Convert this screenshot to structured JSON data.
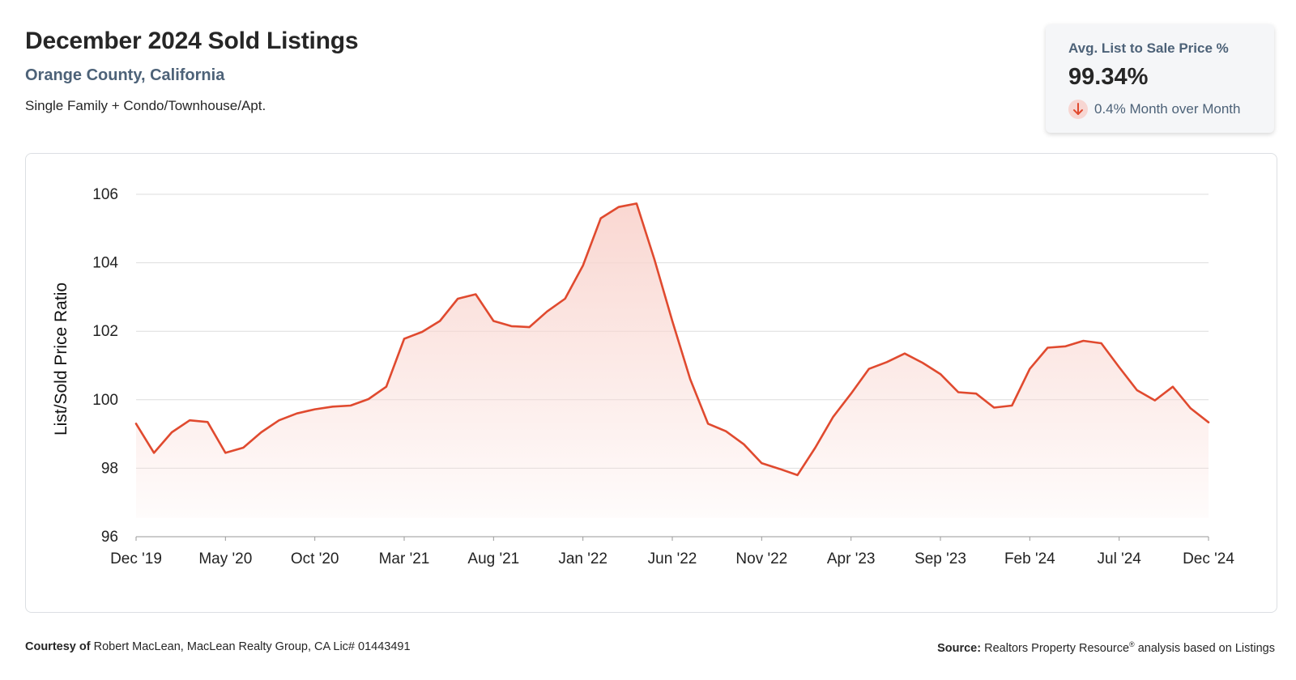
{
  "header": {
    "title": "December 2024 Sold Listings",
    "subtitle": "Orange County, California",
    "property_type": "Single Family + Condo/Townhouse/Apt."
  },
  "kpi": {
    "label": "Avg. List to Sale Price %",
    "value": "99.34%",
    "change": "0.4% Month over Month",
    "direction_icon": "arrow-down-icon",
    "direction_color": "#e04a2f"
  },
  "footer": {
    "courtesy_label": "Courtesy of",
    "courtesy_text": "Robert MacLean, MacLean Realty Group, CA Lic# 01443491",
    "source_label": "Source:",
    "source_text_1": "Realtors Property Resource",
    "source_reg": "®",
    "source_text_2": " analysis based on Listings"
  },
  "chart_data": {
    "type": "area",
    "title": "",
    "xlabel": "",
    "ylabel": "List/Sold Price Ratio",
    "ylim": [
      96,
      106
    ],
    "yticks": [
      96,
      98,
      100,
      102,
      104,
      106
    ],
    "grid": true,
    "line_color": "#e04a2f",
    "fill_color": "#f9d5cf",
    "x_tick_labels": [
      "Dec '19",
      "May '20",
      "Oct '20",
      "Mar '21",
      "Aug '21",
      "Jan '22",
      "Jun '22",
      "Nov '22",
      "Apr '23",
      "Sep '23",
      "Feb '24",
      "Jul '24",
      "Dec '24"
    ],
    "x": [
      "Dec '19",
      "Jan '20",
      "Feb '20",
      "Mar '20",
      "Apr '20",
      "May '20",
      "Jun '20",
      "Jul '20",
      "Aug '20",
      "Sep '20",
      "Oct '20",
      "Nov '20",
      "Dec '20",
      "Jan '21",
      "Feb '21",
      "Mar '21",
      "Apr '21",
      "May '21",
      "Jun '21",
      "Jul '21",
      "Aug '21",
      "Sep '21",
      "Oct '21",
      "Nov '21",
      "Dec '21",
      "Jan '22",
      "Feb '22",
      "Mar '22",
      "Apr '22",
      "May '22",
      "Jun '22",
      "Jul '22",
      "Aug '22",
      "Sep '22",
      "Oct '22",
      "Nov '22",
      "Dec '22",
      "Jan '23",
      "Feb '23",
      "Mar '23",
      "Apr '23",
      "May '23",
      "Jun '23",
      "Jul '23",
      "Aug '23",
      "Sep '23",
      "Oct '23",
      "Nov '23",
      "Dec '23",
      "Jan '24",
      "Feb '24",
      "Mar '24",
      "Apr '24",
      "May '24",
      "Jun '24",
      "Jul '24",
      "Aug '24",
      "Sep '24",
      "Oct '24",
      "Nov '24",
      "Dec '24"
    ],
    "series": [
      {
        "values": [
          99.3,
          98.45,
          99.05,
          99.4,
          99.35,
          98.45,
          98.6,
          99.05,
          99.4,
          99.6,
          99.72,
          99.8,
          99.83,
          100.02,
          100.38,
          101.78,
          101.98,
          102.3,
          102.95,
          103.08,
          102.3,
          102.15,
          102.12,
          102.58,
          102.95,
          103.92,
          105.3,
          105.63,
          105.73,
          104.1,
          102.3,
          100.6,
          99.3,
          99.08,
          98.7,
          98.15,
          97.98,
          97.8,
          98.6,
          99.5,
          100.18,
          100.9,
          101.1,
          101.35,
          101.08,
          100.75,
          100.22,
          100.18,
          99.77,
          99.83,
          100.9,
          101.52,
          101.56,
          101.72,
          101.65,
          100.95,
          100.28,
          99.98,
          100.38,
          99.75,
          99.34
        ]
      }
    ]
  }
}
